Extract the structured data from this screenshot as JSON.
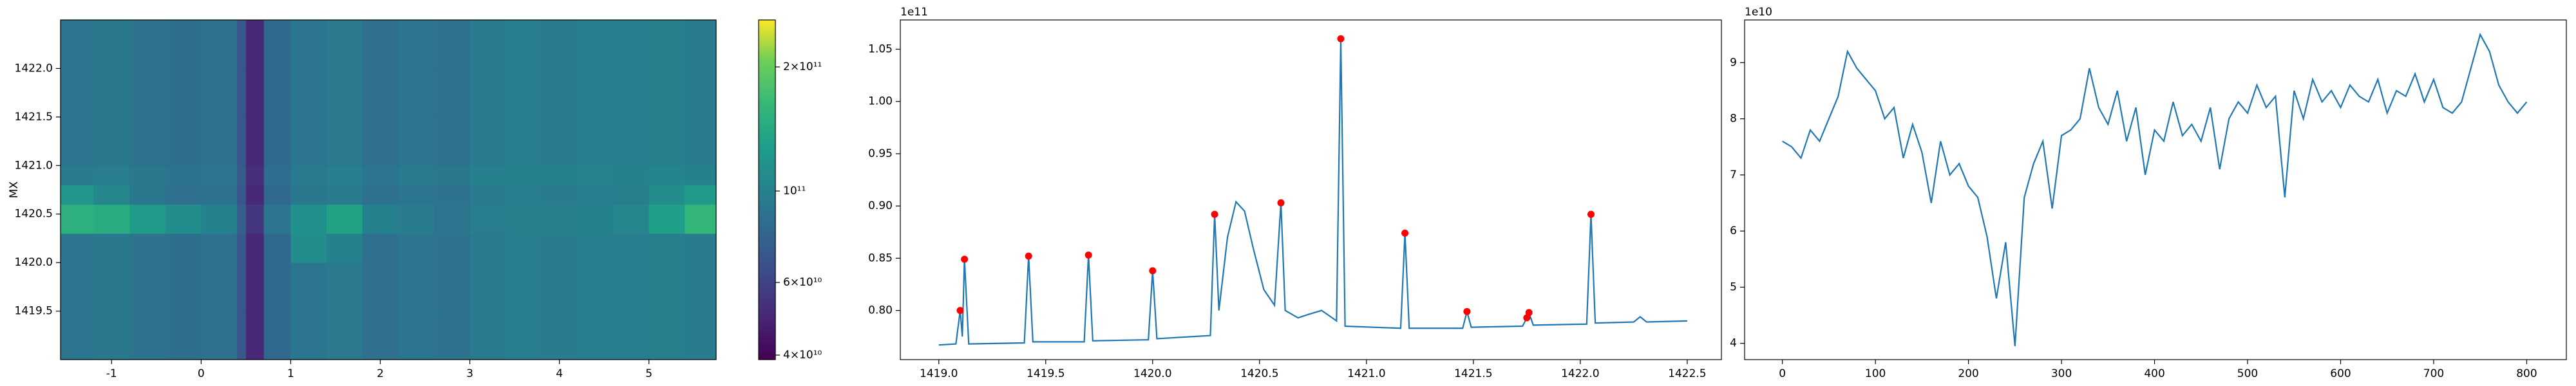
{
  "chart_data": [
    {
      "type": "heatmap",
      "ylabel": "MX",
      "xlim": [
        -1.57,
        5.75
      ],
      "ylim": [
        1419.0,
        1422.5
      ],
      "xticks": [
        -1,
        0,
        1,
        2,
        3,
        4,
        5
      ],
      "yticks": [
        1419.5,
        {
          "value": 1420.0,
          "label": "1420.0"
        },
        1420.5,
        {
          "value": 1421.0,
          "label": "1421.0"
        },
        1421.5,
        {
          "value": 1422.0,
          "label": "1422.0"
        }
      ],
      "xbins": [
        -1.57,
        -1.2,
        -0.8,
        -0.4,
        0,
        0.4,
        0.5,
        0.7,
        1.0,
        1.4,
        1.8,
        2.2,
        2.6,
        3.0,
        3.4,
        3.8,
        4.2,
        4.6,
        5.0,
        5.4,
        5.75
      ],
      "ybins": [
        1419.0,
        1419.5,
        1420.0,
        1420.3,
        1420.6,
        1420.8,
        1421.0,
        1421.5,
        1422.0,
        1422.5
      ],
      "values": [
        [
          90000000000.0,
          92000000000.0,
          88000000000.0,
          85000000000.0,
          87000000000.0,
          70000000000.0,
          50000000000.0,
          80000000000.0,
          90000000000.0,
          93000000000.0,
          86000000000.0,
          90000000000.0,
          88000000000.0,
          94000000000.0,
          96000000000.0,
          95000000000.0,
          97000000000.0,
          96000000000.0,
          98000000000.0,
          95000000000.0
        ],
        [
          90000000000.0,
          92000000000.0,
          88000000000.0,
          85000000000.0,
          87000000000.0,
          70000000000.0,
          50000000000.0,
          80000000000.0,
          90000000000.0,
          93000000000.0,
          86000000000.0,
          90000000000.0,
          88000000000.0,
          94000000000.0,
          96000000000.0,
          95000000000.0,
          97000000000.0,
          96000000000.0,
          98000000000.0,
          95000000000.0
        ],
        [
          90000000000.0,
          92000000000.0,
          88000000000.0,
          85000000000.0,
          87000000000.0,
          70000000000.0,
          50000000000.0,
          80000000000.0,
          110000000000.0,
          100000000000.0,
          86000000000.0,
          90000000000.0,
          88000000000.0,
          94000000000.0,
          96000000000.0,
          95000000000.0,
          97000000000.0,
          96000000000.0,
          98000000000.0,
          95000000000.0
        ],
        [
          150000000000.0,
          145000000000.0,
          125000000000.0,
          110000000000.0,
          100000000000.0,
          75000000000.0,
          55000000000.0,
          90000000000.0,
          115000000000.0,
          135000000000.0,
          100000000000.0,
          95000000000.0,
          90000000000.0,
          96000000000.0,
          98000000000.0,
          98000000000.0,
          100000000000.0,
          105000000000.0,
          130000000000.0,
          160000000000.0
        ],
        [
          120000000000.0,
          105000000000.0,
          92000000000.0,
          86000000000.0,
          88000000000.0,
          70000000000.0,
          50000000000.0,
          80000000000.0,
          92000000000.0,
          95000000000.0,
          87000000000.0,
          90000000000.0,
          88000000000.0,
          94000000000.0,
          96000000000.0,
          95000000000.0,
          97000000000.0,
          98000000000.0,
          110000000000.0,
          125000000000.0
        ],
        [
          95000000000.0,
          96000000000.0,
          92000000000.0,
          89000000000.0,
          91000000000.0,
          73000000000.0,
          52000000000.0,
          84000000000.0,
          94000000000.0,
          97000000000.0,
          90000000000.0,
          94000000000.0,
          92000000000.0,
          99000000000.0,
          100000000000.0,
          100000000000.0,
          102000000000.0,
          100000000000.0,
          103000000000.0,
          100000000000.0
        ],
        [
          90000000000.0,
          92000000000.0,
          88000000000.0,
          85000000000.0,
          87000000000.0,
          70000000000.0,
          50000000000.0,
          80000000000.0,
          90000000000.0,
          93000000000.0,
          86000000000.0,
          90000000000.0,
          88000000000.0,
          94000000000.0,
          96000000000.0,
          95000000000.0,
          97000000000.0,
          96000000000.0,
          98000000000.0,
          95000000000.0
        ],
        [
          90000000000.0,
          92000000000.0,
          88000000000.0,
          85000000000.0,
          87000000000.0,
          70000000000.0,
          50000000000.0,
          80000000000.0,
          90000000000.0,
          93000000000.0,
          86000000000.0,
          90000000000.0,
          88000000000.0,
          94000000000.0,
          96000000000.0,
          95000000000.0,
          97000000000.0,
          96000000000.0,
          98000000000.0,
          95000000000.0
        ],
        [
          90000000000.0,
          92000000000.0,
          88000000000.0,
          85000000000.0,
          87000000000.0,
          70000000000.0,
          50000000000.0,
          80000000000.0,
          90000000000.0,
          93000000000.0,
          86000000000.0,
          90000000000.0,
          88000000000.0,
          94000000000.0,
          96000000000.0,
          95000000000.0,
          97000000000.0,
          96000000000.0,
          98000000000.0,
          95000000000.0
        ]
      ],
      "colormap": "viridis",
      "color_scale": "log",
      "clim": [
        39000000000.0,
        260000000000.0
      ],
      "colorbar_ticks": [
        {
          "value": 40000000000.0,
          "label": "4×10¹⁰"
        },
        {
          "value": 60000000000.0,
          "label": "6×10¹⁰"
        },
        {
          "value": 100000000000.0,
          "label": "10¹¹"
        },
        {
          "value": 200000000000.0,
          "label": "2×10¹¹"
        }
      ]
    },
    {
      "type": "line",
      "color": "#1f77b4",
      "y_offset_label": "1e11",
      "xlim": [
        1418.82,
        1422.66
      ],
      "ylim": [
        0.753,
        1.078
      ],
      "xticks": [
        {
          "value": 1419.0,
          "label": "1419.0"
        },
        1419.5,
        {
          "value": 1420.0,
          "label": "1420.0"
        },
        1420.5,
        {
          "value": 1421.0,
          "label": "1421.0"
        },
        1421.5,
        {
          "value": 1422.0,
          "label": "1422.0"
        },
        1422.5
      ],
      "yticks": [
        {
          "value": 0.8,
          "label": "0.80"
        },
        0.85,
        {
          "value": 0.9,
          "label": "0.90"
        },
        0.95,
        {
          "value": 1.0,
          "label": "1.00"
        },
        1.05
      ],
      "x": [
        1419.0,
        1419.08,
        1419.1,
        1419.11,
        1419.12,
        1419.14,
        1419.4,
        1419.42,
        1419.44,
        1419.68,
        1419.7,
        1419.72,
        1419.98,
        1420.0,
        1420.02,
        1420.27,
        1420.29,
        1420.31,
        1420.35,
        1420.39,
        1420.43,
        1420.47,
        1420.52,
        1420.57,
        1420.6,
        1420.62,
        1420.68,
        1420.74,
        1420.79,
        1420.84,
        1420.86,
        1420.88,
        1420.9,
        1421.16,
        1421.18,
        1421.2,
        1421.45,
        1421.47,
        1421.49,
        1421.73,
        1421.75,
        1421.76,
        1421.78,
        1422.03,
        1422.05,
        1422.07,
        1422.25,
        1422.28,
        1422.31,
        1422.5
      ],
      "values": [
        0.767,
        0.768,
        0.8,
        0.775,
        0.849,
        0.768,
        0.769,
        0.852,
        0.77,
        0.77,
        0.853,
        0.771,
        0.772,
        0.838,
        0.773,
        0.776,
        0.892,
        0.8,
        0.87,
        0.904,
        0.895,
        0.86,
        0.82,
        0.805,
        0.903,
        0.8,
        0.793,
        0.797,
        0.8,
        0.793,
        0.79,
        1.06,
        0.785,
        0.783,
        0.874,
        0.783,
        0.783,
        0.799,
        0.784,
        0.785,
        0.793,
        0.798,
        0.786,
        0.787,
        0.892,
        0.788,
        0.789,
        0.794,
        0.789,
        0.79
      ],
      "markers": {
        "color": "#ff0000",
        "x": [
          1419.1,
          1419.12,
          1419.42,
          1419.7,
          1420.0,
          1420.29,
          1420.6,
          1420.88,
          1421.18,
          1421.47,
          1421.75,
          1421.76,
          1422.05
        ],
        "values": [
          0.8,
          0.849,
          0.852,
          0.853,
          0.838,
          0.892,
          0.903,
          1.06,
          0.874,
          0.799,
          0.793,
          0.798,
          0.892
        ]
      }
    },
    {
      "type": "line",
      "color": "#1f77b4",
      "y_offset_label": "1e10",
      "xlim": [
        -40.6,
        842.6
      ],
      "ylim": [
        3.71,
        9.76
      ],
      "xticks": [
        0,
        100,
        200,
        300,
        400,
        500,
        600,
        700,
        800
      ],
      "yticks": [
        4,
        5,
        6,
        7,
        8,
        9
      ],
      "x": [
        0,
        10,
        20,
        30,
        40,
        50,
        60,
        70,
        80,
        90,
        100,
        110,
        120,
        130,
        140,
        150,
        160,
        170,
        180,
        190,
        200,
        210,
        220,
        230,
        240,
        250,
        260,
        270,
        280,
        290,
        300,
        310,
        320,
        330,
        340,
        350,
        360,
        370,
        380,
        390,
        400,
        410,
        420,
        430,
        440,
        450,
        460,
        470,
        480,
        490,
        500,
        510,
        520,
        530,
        540,
        550,
        560,
        570,
        580,
        590,
        600,
        610,
        620,
        630,
        640,
        650,
        660,
        670,
        680,
        690,
        700,
        710,
        720,
        730,
        740,
        750,
        760,
        770,
        780,
        790,
        800
      ],
      "values": [
        7.6,
        7.5,
        7.3,
        7.8,
        7.6,
        8.0,
        8.4,
        9.2,
        8.9,
        8.7,
        8.5,
        8.0,
        8.2,
        7.3,
        7.9,
        7.4,
        6.5,
        7.6,
        7.0,
        7.2,
        6.8,
        6.6,
        5.9,
        4.8,
        5.8,
        3.95,
        6.6,
        7.2,
        7.6,
        6.4,
        7.7,
        7.8,
        8.0,
        8.9,
        8.2,
        7.9,
        8.5,
        7.6,
        8.2,
        7.0,
        7.8,
        7.6,
        8.3,
        7.7,
        7.9,
        7.6,
        8.2,
        7.1,
        8.0,
        8.3,
        8.1,
        8.6,
        8.2,
        8.4,
        6.6,
        8.5,
        8.0,
        8.7,
        8.3,
        8.5,
        8.2,
        8.6,
        8.4,
        8.3,
        8.7,
        8.1,
        8.5,
        8.4,
        8.8,
        8.3,
        8.7,
        8.2,
        8.1,
        8.3,
        8.9,
        9.5,
        9.2,
        8.6,
        8.3,
        8.1,
        8.3
      ]
    }
  ]
}
